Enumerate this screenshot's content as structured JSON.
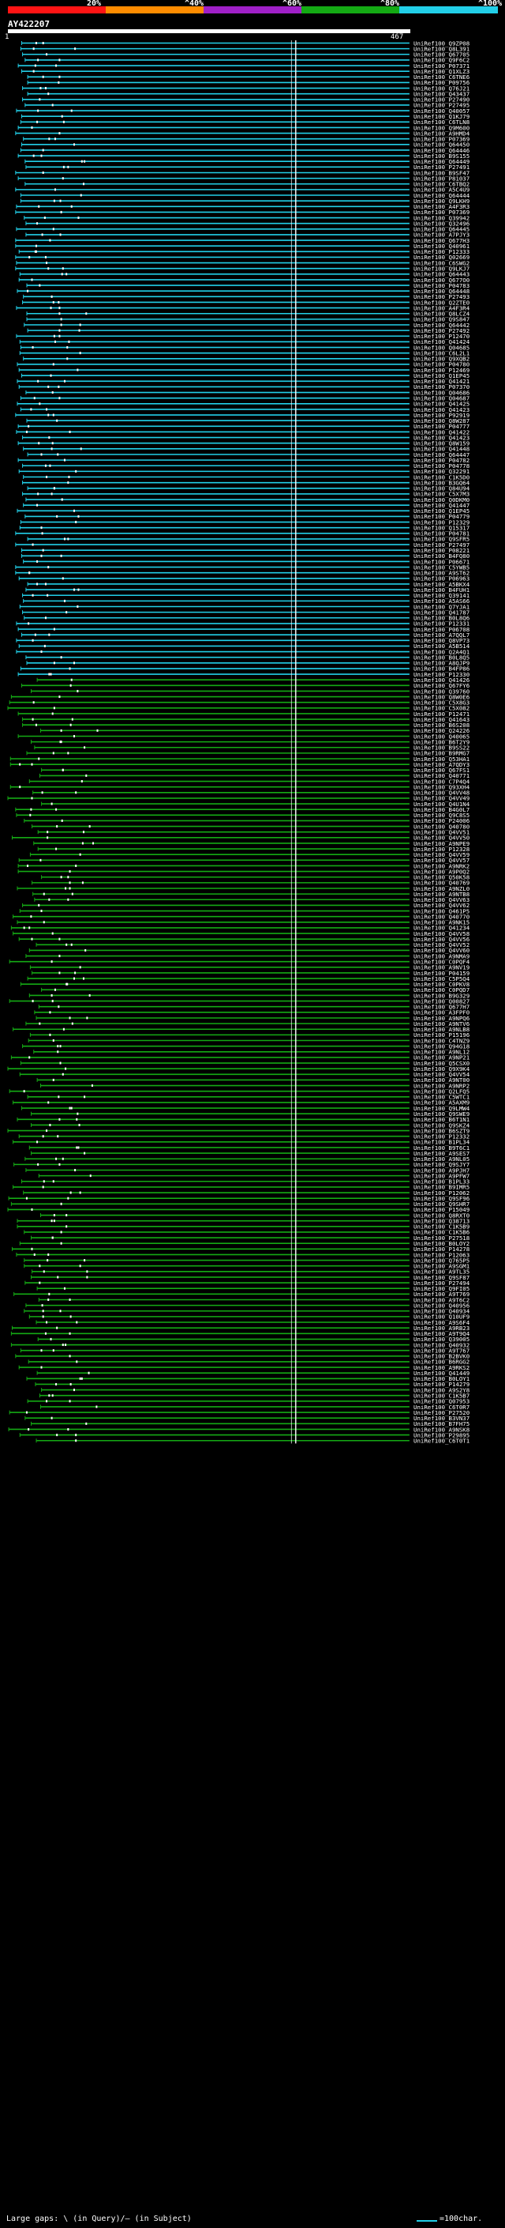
{
  "chart_data": {
    "type": "alignment",
    "query": {
      "name": "AY422207",
      "start": 1,
      "end": 467
    },
    "identity_scale": [
      {
        "label": "20%",
        "color": "#ff1414"
      },
      {
        "label": "40%",
        "color": "#ff8c00"
      },
      {
        "label": "60%",
        "color": "#a020c8"
      },
      {
        "label": "80%",
        "color": "#14aa14"
      },
      {
        "label": "100%",
        "color": "#22cfe8"
      }
    ],
    "scale_label_prefix": "^",
    "groups": [
      {
        "identity": "100%",
        "color": "#22cfe8",
        "hits": [
          "UniRef100_Q9ZP08",
          "UniRef100_Q8L391",
          "UniRef100_Q67705",
          "UniRef100_Q9F6C2",
          "UniRef100_P07371",
          "UniRef100_Q1XLZ3",
          "UniRef100_C6TNE6",
          "UniRef100_P09756",
          "UniRef100_Q76J21",
          "UniRef100_Q43437",
          "UniRef100_P27490",
          "UniRef100_P27495",
          "UniRef100_Q40057",
          "UniRef100_Q1KJ79",
          "UniRef100_C6TLN8",
          "UniRef100_Q9M600",
          "UniRef100_A9HMD4",
          "UniRef100_P07369",
          "UniRef100_Q64450",
          "UniRef100_Q64446",
          "UniRef100_B9S155",
          "UniRef100_Q64449",
          "UniRef100_P27491",
          "UniRef100_B9SF47",
          "UniRef100_P81037",
          "UniRef100_C6TBQ2",
          "UniRef100_A5C4U9",
          "UniRef100_Q64444",
          "UniRef100_Q9LKH9",
          "UniRef100_A4F3R3",
          "UniRef100_P07369",
          "UniRef100_Q39942",
          "UniRef100_Q32496",
          "UniRef100_Q64445",
          "UniRef100_A7PJY3",
          "UniRef100_Q677H3",
          "UniRef100_Q40961",
          "UniRef100_P12333",
          "UniRef100_Q02669",
          "UniRef100_C6SWG2",
          "UniRef100_Q9LKJ7",
          "UniRef100_Q64443",
          "UniRef100_Q677O0",
          "UniRef100_P04783",
          "UniRef100_Q64448",
          "UniRef100_P27493",
          "UniRef100_Q2ZTE0",
          "UniRef100_A4F3R4",
          "UniRef100_Q8LCZ4",
          "UniRef100_Q9S847",
          "UniRef100_Q64442",
          "UniRef100_P27492",
          "UniRef100_P12470",
          "UniRef100_Q41424",
          "UniRef100_Q04685",
          "UniRef100_C6L2L1",
          "UniRef100_Q9XQB2",
          "UniRef100_P04780",
          "UniRef100_P12469",
          "UniRef100_Q1EP45",
          "UniRef100_Q41421",
          "UniRef100_P07370",
          "UniRef100_Q04686",
          "UniRef100_Q04687",
          "UniRef100_Q41425",
          "UniRef100_Q41423",
          "UniRef100_P92919",
          "UniRef100_Q8W287",
          "UniRef100_P04777",
          "UniRef100_Q41422",
          "UniRef100_Q41423",
          "UniRef100_Q8W159",
          "UniRef100_Q41448",
          "UniRef100_Q64447",
          "UniRef100_P04782",
          "UniRef100_P04778",
          "UniRef100_Q32291",
          "UniRef100_C1K5D0",
          "UniRef100_B3GQ64",
          "UniRef100_Q84U94",
          "UniRef100_C5X7M3",
          "UniRef100_Q0DKM0",
          "UniRef100_Q41447",
          "UniRef100_Q1EP45",
          "UniRef100_P04779",
          "UniRef100_P12329",
          "UniRef100_Q15317",
          "UniRef100_P04781",
          "UniRef100_Q9SFR5",
          "UniRef100_P27497",
          "UniRef100_P08221",
          "UniRef100_B4FQ80",
          "UniRef100_P06671",
          "UniRef100_C5YWB5",
          "UniRef100_A9ST62",
          "UniRef100_P06963",
          "UniRef100_A5BKX4",
          "UniRef100_B4FUH1",
          "UniRef100_Q39141",
          "UniRef100_A5AS66",
          "UniRef100_Q7YJA1",
          "UniRef100_Q41787",
          "UniRef100_B0L8Q6",
          "UniRef100_P12331",
          "UniRef100_P06708",
          "UniRef100_A7QQL7",
          "UniRef100_Q8VP73",
          "UniRef100_A5B514",
          "UniRef100_Q2A4Q1",
          "UniRef100_B0L8Q5",
          "UniRef100_A8QJP9",
          "UniRef100_B4FP86",
          "UniRef100_P12330"
        ]
      },
      {
        "identity": "80%",
        "color": "#14aa14",
        "hits": [
          "UniRef100_Q41426",
          "UniRef100_Q67FY6",
          "UniRef100_Q39760",
          "UniRef100_Q8W0E6",
          "UniRef100_C5X8G3",
          "UniRef100_C5X082",
          "UniRef100_P12471",
          "UniRef100_Q41643",
          "UniRef100_B6S208",
          "UniRef100_Q24226",
          "UniRef100_Q40065",
          "UniRef100_B6T2Y9",
          "UniRef100_B9SS22",
          "UniRef100_B9RMG7",
          "UniRef100_Q53HA1",
          "UniRef100_A7QDY3",
          "UniRef100_Q67FS1",
          "UniRef100_Q40771",
          "UniRef100_C7P4Q4",
          "UniRef100_Q93XH4",
          "UniRef100_Q4VV48",
          "UniRef100_Q4VV49",
          "UniRef100_Q4U1N4",
          "UniRef100_B4G0L7",
          "UniRef100_Q9C8S5",
          "UniRef100_P24006",
          "UniRef100_Q40780",
          "UniRef100_Q4VV51",
          "UniRef100_Q4VV50",
          "UniRef100_A9NPE9",
          "UniRef100_P12328",
          "UniRef100_Q4VV59",
          "UniRef100_Q4VV57",
          "UniRef100_A9NRK2",
          "UniRef100_A9P0Q2",
          "UniRef100_Q50K58",
          "UniRef100_Q40769",
          "UniRef100_A9NZL0",
          "UniRef100_A9NTB8",
          "UniRef100_Q4VV63",
          "UniRef100_Q4VV62",
          "UniRef100_Q461P5",
          "UniRef100_Q40770",
          "UniRef100_A9NK15",
          "UniRef100_Q41234",
          "UniRef100_Q4VV58",
          "UniRef100_Q4VV56",
          "UniRef100_Q4VV52",
          "UniRef100_Q4VV60",
          "UniRef100_A9NMA9",
          "UniRef100_C0PQF4",
          "UniRef100_A9NV19",
          "UniRef100_P04159",
          "UniRef100_C5P5Q4",
          "UniRef100_C0PKV8",
          "UniRef100_C0PQD7",
          "UniRef100_B9G329",
          "UniRef100_Q00827",
          "UniRef100_Q677H7",
          "UniRef100_A3FPF0",
          "UniRef100_A9NPQ6",
          "UniRef100_A9NTV6",
          "UniRef100_A9NLB8",
          "UniRef100_P15196",
          "UniRef100_C4TNZ9",
          "UniRef100_Q94G18",
          "UniRef100_A9NL12",
          "UniRef100_A9NP21",
          "UniRef100_Q5CSX0",
          "UniRef100_Q9X9K4",
          "UniRef100_Q4VV54",
          "UniRef100_A9NT00",
          "UniRef100_A9NRP2",
          "UniRef100_Q2LFQ5",
          "UniRef100_C5WTC1",
          "UniRef100_A5AXM9",
          "UniRef100_Q9LMW4",
          "UniRef100_Q9SWE9",
          "UniRef100_B6T1N1",
          "UniRef100_Q9SKZ4",
          "UniRef100_B6SZT9",
          "UniRef100_P12332",
          "UniRef100_B1PL34",
          "UniRef100_B9T6C1",
          "UniRef100_A9SES7",
          "UniRef100_A9NL05",
          "UniRef100_Q9SJY7",
          "UniRef100_A9PJH7",
          "UniRef100_A9PFW7",
          "UniRef100_B1PL33",
          "UniRef100_B9IMR5",
          "UniRef100_P12062",
          "UniRef100_Q9SF96",
          "UniRef100_Q9SHR7",
          "UniRef100_P15049",
          "UniRef100_Q8RXT0",
          "UniRef100_Q38713",
          "UniRef100_C1K5B9",
          "UniRef100_C1K5B6",
          "UniRef100_P27518",
          "UniRef100_B0LOY2",
          "UniRef100_P14278",
          "UniRef100_P12063",
          "UniRef100_Q765P5",
          "UniRef100_A9SGM1",
          "UniRef100_A9TL35",
          "UniRef100_Q9SF87",
          "UniRef100_P27494",
          "UniRef100_Q9FI05",
          "UniRef100_A9T769",
          "UniRef100_A9T6C2",
          "UniRef100_Q40956",
          "UniRef100_Q40934",
          "UniRef100_Q10UF9",
          "UniRef100_A9S6F4",
          "UniRef100_A9RB23",
          "UniRef100_A9T9Q4",
          "UniRef100_Q39005",
          "UniRef100_Q40932",
          "UniRef100_A9T767",
          "UniRef100_B2BVK0",
          "UniRef100_B6RGG2",
          "UniRef100_A9RKS2",
          "UniRef100_Q41449",
          "UniRef100_B0LOY1",
          "UniRef100_P14279",
          "UniRef100_A9S2Y8",
          "UniRef100_C1K5B7",
          "UniRef100_Q07953",
          "UniRef100_C6T0R7",
          "UniRef100_P27520",
          "UniRef100_B3VN37",
          "UniRef100_B7FH75",
          "UniRef100_A9NSK8",
          "UniRef100_P29895",
          "UniRef100_C6T0T1"
        ]
      }
    ]
  },
  "footer": {
    "legend_text": "Large gaps: \\ (in Query)/– (in Subject)",
    "scale_text": "=100char."
  }
}
